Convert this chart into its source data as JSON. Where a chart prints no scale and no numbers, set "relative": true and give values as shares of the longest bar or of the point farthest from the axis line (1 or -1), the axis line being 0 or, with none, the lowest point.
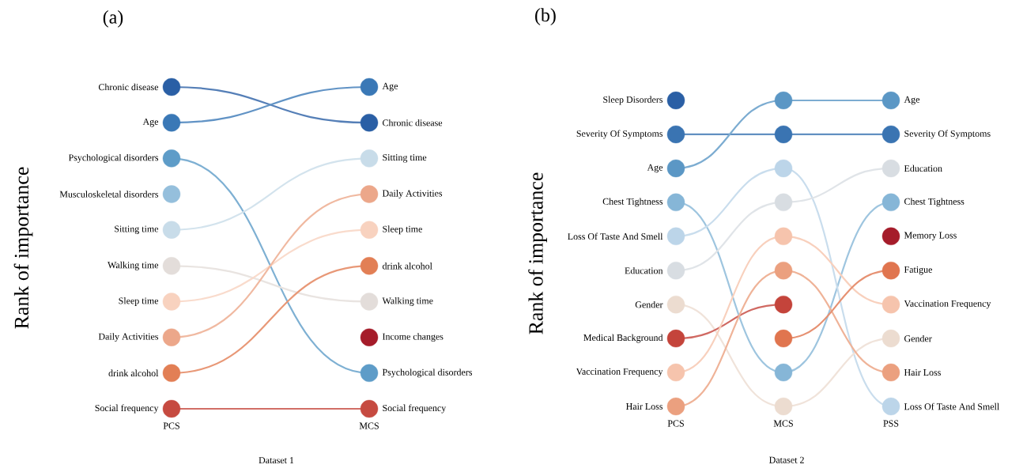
{
  "chart_data": [
    {
      "type": "line",
      "title": "(a)",
      "xlabel": "Dataset 1",
      "ylabel": "Rank of importance",
      "categories": [
        "PCS",
        "MCS"
      ],
      "relative": true,
      "marker": "circle",
      "legend": "right",
      "series": [
        {
          "name": "Chronic disease",
          "color": "#2a5fa5",
          "values": [
            1,
            0.889
          ]
        },
        {
          "name": "Age",
          "color": "#3a78b6",
          "values": [
            0.889,
            1
          ]
        },
        {
          "name": "Psychological disorders",
          "color": "#5e9cc8",
          "values": [
            0.778,
            0.111
          ]
        },
        {
          "name": "Musculoskeletal disorders",
          "color": "#95bfdc",
          "values": [
            0.667,
            null
          ]
        },
        {
          "name": "Sitting time",
          "color": "#c8dce9",
          "values": [
            0.556,
            0.778
          ]
        },
        {
          "name": "Walking time",
          "color": "#e3ddda",
          "values": [
            0.444,
            0.333
          ]
        },
        {
          "name": "Sleep time",
          "color": "#f8d2bf",
          "values": [
            0.333,
            0.556
          ]
        },
        {
          "name": "Daily Activities",
          "color": "#eca78a",
          "values": [
            0.222,
            0.667
          ]
        },
        {
          "name": "drink alcohol",
          "color": "#e27f55",
          "values": [
            0.111,
            0.444
          ]
        },
        {
          "name": "Income changes",
          "color": "#a51c2a",
          "values": [
            null,
            0.222
          ]
        },
        {
          "name": "Social frequency",
          "color": "#c64a40",
          "values": [
            0,
            0
          ]
        }
      ]
    },
    {
      "type": "line",
      "title": "(b)",
      "xlabel": "Dataset 2",
      "ylabel": "Rank of importance",
      "categories": [
        "PCS",
        "MCS",
        "PSS"
      ],
      "relative": true,
      "marker": "circle",
      "legend": "right",
      "series": [
        {
          "name": "Sleep Disorders",
          "color": "#2a5fa5",
          "values": [
            1,
            null,
            null
          ]
        },
        {
          "name": "Severity Of Symptoms",
          "color": "#3a74b2",
          "values": [
            0.889,
            0.889,
            0.889
          ]
        },
        {
          "name": "Age",
          "color": "#5b97c5",
          "values": [
            0.778,
            1,
            1
          ]
        },
        {
          "name": "Chest Tightness",
          "color": "#86b6d7",
          "values": [
            0.667,
            0.111,
            0.667
          ]
        },
        {
          "name": "Loss Of Taste And Smell",
          "color": "#bcd5e9",
          "values": [
            0.556,
            0.778,
            0
          ]
        },
        {
          "name": "Education",
          "color": "#d8dde2",
          "values": [
            0.444,
            0.667,
            0.778
          ]
        },
        {
          "name": "Gender",
          "color": "#ecdcd0",
          "values": [
            0.333,
            0,
            0.222
          ]
        },
        {
          "name": "Medical Background",
          "color": "#c4443b",
          "values": [
            0.222,
            0.333,
            null
          ]
        },
        {
          "name": "Vaccination Frequency",
          "color": "#f6c4ad",
          "values": [
            0.111,
            0.556,
            0.333
          ]
        },
        {
          "name": "Hair Loss",
          "color": "#eba07f",
          "values": [
            0,
            0.444,
            0.111
          ]
        },
        {
          "name": "Fatigue",
          "color": "#e0754f",
          "values": [
            null,
            0.222,
            0.444
          ]
        },
        {
          "name": "Memory Loss",
          "color": "#a51c2a",
          "values": [
            null,
            null,
            0.556
          ]
        }
      ]
    }
  ]
}
